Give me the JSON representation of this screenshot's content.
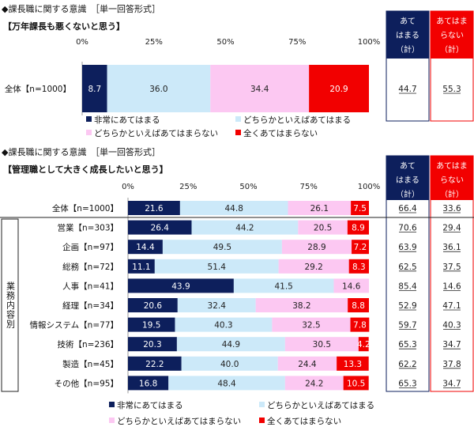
{
  "colors": {
    "very_applies": "#0d1f5c",
    "somewhat_applies": "#cce9f9",
    "somewhat_not": "#fcc8f2",
    "not_at_all": "#f20000",
    "summary_applies": "#0d1f5c",
    "summary_not": "#f20000"
  },
  "chart_data": [
    {
      "type": "bar",
      "stacked": true,
      "orientation": "horizontal",
      "heading": "◆課長職に関する意識　［単一回答形式］",
      "title": "【万年課長も悪くないと思う】",
      "xlim": [
        0,
        100
      ],
      "ticks": [
        "0%",
        "25%",
        "50%",
        "75%",
        "100%"
      ],
      "legend": [
        "非常にあてはまる",
        "どちらかといえばあてはまる",
        "どちらかといえばあてはまらない",
        "全くあてはまらない"
      ],
      "legend_placement": "bottom",
      "summary_headers": [
        "あてはまる（計）",
        "あてはまらない（計）"
      ],
      "categories": [
        "全体【n=1000】"
      ],
      "series": [
        {
          "name": "非常にあてはまる",
          "values": [
            8.7
          ]
        },
        {
          "name": "どちらかといえばあてはまる",
          "values": [
            36.0
          ]
        },
        {
          "name": "どちらかといえばあてはまらない",
          "values": [
            34.4
          ]
        },
        {
          "name": "全くあてはまらない",
          "values": [
            20.9
          ]
        }
      ],
      "summary_applies": [
        "44.7"
      ],
      "summary_not": [
        "55.3"
      ]
    },
    {
      "type": "bar",
      "stacked": true,
      "orientation": "horizontal",
      "heading": "◆課長職に関する意識　［単一回答形式］",
      "title": "【管理職として大きく成長したいと思う】",
      "xlim": [
        0,
        100
      ],
      "ticks": [
        "0%",
        "25%",
        "50%",
        "75%",
        "100%"
      ],
      "legend": [
        "非常にあてはまる",
        "どちらかといえばあてはまる",
        "どちらかといえばあてはまらない",
        "全くあてはまらない"
      ],
      "legend_placement": "bottom",
      "summary_headers": [
        "あてはまる（計）",
        "あてはまらない（計）"
      ],
      "group_label": "業務内容別",
      "categories": [
        "全体【n=1000】",
        "営業【n=303】",
        "企画【n=97】",
        "総務【n=72】",
        "人事【n=41】",
        "経理【n=34】",
        "情報システム【n=77】",
        "技術【n=236】",
        "製造【n=45】",
        "その他【n=95】"
      ],
      "series": [
        {
          "name": "非常にあてはまる",
          "values": [
            21.6,
            26.4,
            14.4,
            11.1,
            43.9,
            20.6,
            19.5,
            20.3,
            22.2,
            16.8
          ]
        },
        {
          "name": "どちらかといえばあてはまる",
          "values": [
            44.8,
            44.2,
            49.5,
            51.4,
            41.5,
            32.4,
            40.3,
            44.9,
            40.0,
            48.4
          ]
        },
        {
          "name": "どちらかといえばあてはまらない",
          "values": [
            26.1,
            20.5,
            28.9,
            29.2,
            14.6,
            38.2,
            32.5,
            30.5,
            24.4,
            24.2
          ]
        },
        {
          "name": "全くあてはまらない",
          "values": [
            7.5,
            8.9,
            7.2,
            8.3,
            0,
            8.8,
            7.8,
            4.2,
            13.3,
            10.5
          ]
        }
      ],
      "summary_applies": [
        "66.4",
        "70.6",
        "63.9",
        "62.5",
        "85.4",
        "52.9",
        "59.7",
        "65.3",
        "62.2",
        "65.3"
      ],
      "summary_not": [
        "33.6",
        "29.4",
        "36.1",
        "37.5",
        "14.6",
        "47.1",
        "40.3",
        "34.7",
        "37.8",
        "34.7"
      ]
    }
  ]
}
